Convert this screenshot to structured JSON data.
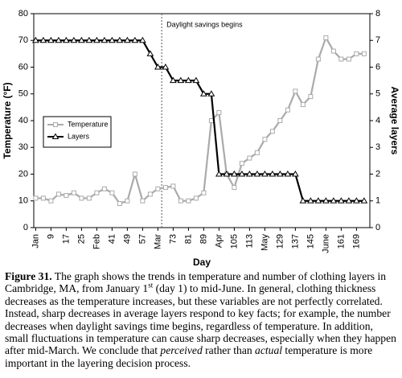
{
  "chart_data": {
    "type": "line",
    "x_label": "Day",
    "y_label": "Temperature (°F)",
    "y2_label": "Average layers",
    "annotation": "Daylight savings begins",
    "annotation_x": 67,
    "x": [
      1,
      5,
      9,
      13,
      17,
      21,
      25,
      29,
      33,
      37,
      41,
      45,
      49,
      53,
      57,
      61,
      65,
      69,
      73,
      77,
      81,
      85,
      89,
      93,
      97,
      101,
      105,
      109,
      113,
      117,
      121,
      125,
      129,
      133,
      137,
      141,
      145,
      149,
      153,
      157,
      161,
      165,
      169,
      173
    ],
    "series": [
      {
        "name": "Temperature",
        "color": "#aaaaaa",
        "marker": "square",
        "values": [
          11,
          11,
          10,
          12.5,
          12,
          13,
          11,
          11,
          13,
          14.5,
          13,
          9,
          10,
          20,
          10,
          12.5,
          14.5,
          15,
          15.5,
          10,
          10,
          11,
          13,
          40,
          43,
          20,
          15,
          24,
          26,
          28,
          33,
          36,
          40,
          44,
          51,
          46,
          49,
          63,
          71,
          66,
          63,
          63,
          65,
          65
        ]
      },
      {
        "name": "Layers",
        "color": "#000000",
        "marker": "triangle",
        "axis": "y2",
        "values": [
          7,
          7,
          7,
          7,
          7,
          7,
          7,
          7,
          7,
          7,
          7,
          7,
          7,
          7,
          7,
          6.5,
          6,
          6,
          5.5,
          5.5,
          5.5,
          5.5,
          5,
          5,
          2,
          2,
          2,
          2,
          2,
          2,
          2,
          2,
          2,
          2,
          2,
          1,
          1,
          1,
          1,
          1,
          1,
          1,
          1,
          1
        ]
      }
    ],
    "xlim": [
      0,
      176
    ],
    "xticks": [
      {
        "value": 1,
        "label": "Jan"
      },
      9,
      17,
      25,
      {
        "value": 33,
        "label": "Feb"
      },
      41,
      49,
      57,
      {
        "value": 65,
        "label": "Mar"
      },
      73,
      81,
      89,
      {
        "value": 97,
        "label": "Apr"
      },
      105,
      113,
      {
        "value": 121,
        "label": "May"
      },
      129,
      137,
      145,
      {
        "value": 153,
        "label": "June"
      },
      161,
      169
    ],
    "ylim": [
      0,
      80
    ],
    "yticks": [
      0,
      10,
      20,
      30,
      40,
      50,
      60,
      70,
      80
    ],
    "y2lim": [
      0,
      8
    ],
    "y2ticks": [
      0,
      1,
      2,
      3,
      4,
      5,
      6,
      7,
      8
    ],
    "grid": false,
    "legend": "left"
  },
  "caption": {
    "label": "Figure 31.",
    "text_1": " The graph shows the trends in temperature and number of clothing layers in Cambridge, MA, from January 1",
    "superscript": "st",
    "text_2": " (day 1) to mid-June. In general, clothing thickness decreases as the temperature increases, but these variables are not perfectly correlated. Instead, sharp decreases in average layers respond to key facts; for example, the number decreases when daylight savings time begins, regardless of temperature. In addition, small fluctuations in temperature can cause sharp decreases, especially when they happen after mid-March. We conclude that ",
    "emphasis_1": "perceived",
    "text_3": " rather than ",
    "emphasis_2": "actual",
    "text_4": " temperature is more important in the layering decision process."
  }
}
